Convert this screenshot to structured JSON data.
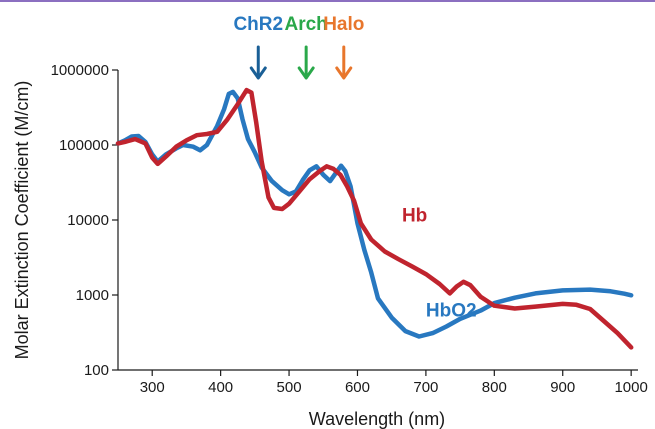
{
  "chart_data": {
    "type": "line",
    "xlabel": "Wavelength (nm)",
    "ylabel": "Molar Extinction Coefficient (M/cm)",
    "xlim": [
      250,
      1010
    ],
    "ylim": [
      100,
      1000000
    ],
    "y_scale": "log",
    "grid": false,
    "x_ticks": [
      {
        "value": 300,
        "label": "300"
      },
      {
        "value": 400,
        "label": "400"
      },
      {
        "value": 500,
        "label": "500"
      },
      {
        "value": 600,
        "label": "600"
      },
      {
        "value": 700,
        "label": "700"
      },
      {
        "value": 800,
        "label": "800"
      },
      {
        "value": 900,
        "label": "900"
      },
      {
        "value": 1000,
        "label": "1000"
      }
    ],
    "y_ticks": [
      {
        "value": 100,
        "label": "100"
      },
      {
        "value": 1000,
        "label": "1000"
      },
      {
        "value": 10000,
        "label": "10000"
      },
      {
        "value": 100000,
        "label": "100000"
      },
      {
        "value": 1000000,
        "label": "1000000"
      }
    ],
    "series": [
      {
        "name": "HbO2",
        "color": "#2878c0",
        "label_position": [
          700,
          520
        ],
        "points": [
          [
            250,
            105000
          ],
          [
            260,
            115000
          ],
          [
            270,
            130000
          ],
          [
            280,
            132000
          ],
          [
            290,
            110000
          ],
          [
            300,
            75000
          ],
          [
            308,
            60000
          ],
          [
            320,
            75000
          ],
          [
            335,
            90000
          ],
          [
            345,
            100000
          ],
          [
            360,
            95000
          ],
          [
            370,
            85000
          ],
          [
            380,
            100000
          ],
          [
            395,
            180000
          ],
          [
            405,
            300000
          ],
          [
            412,
            480000
          ],
          [
            418,
            510000
          ],
          [
            425,
            420000
          ],
          [
            432,
            220000
          ],
          [
            440,
            120000
          ],
          [
            450,
            80000
          ],
          [
            460,
            50000
          ],
          [
            475,
            33000
          ],
          [
            490,
            25000
          ],
          [
            500,
            22000
          ],
          [
            510,
            24000
          ],
          [
            520,
            34000
          ],
          [
            530,
            46000
          ],
          [
            540,
            52000
          ],
          [
            550,
            40000
          ],
          [
            560,
            33000
          ],
          [
            568,
            42000
          ],
          [
            576,
            53000
          ],
          [
            582,
            45000
          ],
          [
            590,
            28000
          ],
          [
            600,
            9000
          ],
          [
            610,
            4000
          ],
          [
            620,
            2000
          ],
          [
            630,
            900
          ],
          [
            650,
            500
          ],
          [
            670,
            330
          ],
          [
            690,
            280
          ],
          [
            710,
            310
          ],
          [
            730,
            380
          ],
          [
            750,
            480
          ],
          [
            780,
            620
          ],
          [
            800,
            780
          ],
          [
            830,
            920
          ],
          [
            860,
            1050
          ],
          [
            900,
            1150
          ],
          [
            940,
            1180
          ],
          [
            970,
            1120
          ],
          [
            990,
            1040
          ],
          [
            1000,
            990
          ]
        ]
      },
      {
        "name": "Hb",
        "color": "#c0242e",
        "label_position": [
          665,
          9500
        ],
        "points": [
          [
            250,
            105000
          ],
          [
            260,
            110000
          ],
          [
            275,
            120000
          ],
          [
            290,
            105000
          ],
          [
            300,
            68000
          ],
          [
            308,
            56000
          ],
          [
            320,
            70000
          ],
          [
            335,
            95000
          ],
          [
            350,
            115000
          ],
          [
            365,
            135000
          ],
          [
            380,
            140000
          ],
          [
            395,
            150000
          ],
          [
            410,
            220000
          ],
          [
            425,
            350000
          ],
          [
            438,
            540000
          ],
          [
            445,
            500000
          ],
          [
            452,
            200000
          ],
          [
            460,
            60000
          ],
          [
            470,
            20000
          ],
          [
            478,
            14500
          ],
          [
            490,
            14000
          ],
          [
            500,
            16500
          ],
          [
            515,
            24000
          ],
          [
            530,
            35000
          ],
          [
            545,
            45000
          ],
          [
            555,
            52000
          ],
          [
            565,
            48000
          ],
          [
            575,
            40000
          ],
          [
            585,
            28000
          ],
          [
            595,
            18000
          ],
          [
            605,
            9000
          ],
          [
            620,
            5500
          ],
          [
            640,
            3800
          ],
          [
            660,
            3000
          ],
          [
            680,
            2400
          ],
          [
            700,
            1900
          ],
          [
            720,
            1400
          ],
          [
            735,
            1050
          ],
          [
            745,
            1300
          ],
          [
            755,
            1500
          ],
          [
            765,
            1350
          ],
          [
            780,
            950
          ],
          [
            800,
            720
          ],
          [
            830,
            660
          ],
          [
            860,
            700
          ],
          [
            900,
            760
          ],
          [
            920,
            740
          ],
          [
            940,
            650
          ],
          [
            960,
            450
          ],
          [
            980,
            310
          ],
          [
            1000,
            200
          ]
        ]
      }
    ],
    "annotations": [
      {
        "text": "ChR2",
        "x": 455,
        "color": "#2878c0",
        "arrow_color": "#1a5f96"
      },
      {
        "text": "Arch",
        "x": 525,
        "color": "#2aa84a",
        "arrow_color": "#2aa84a"
      },
      {
        "text": "Halo",
        "x": 580,
        "color": "#e8762c",
        "arrow_color": "#e8762c"
      }
    ]
  },
  "theme": {
    "top_rule_color": "#8b6fc0",
    "axis_color": "#1a1a1a"
  }
}
